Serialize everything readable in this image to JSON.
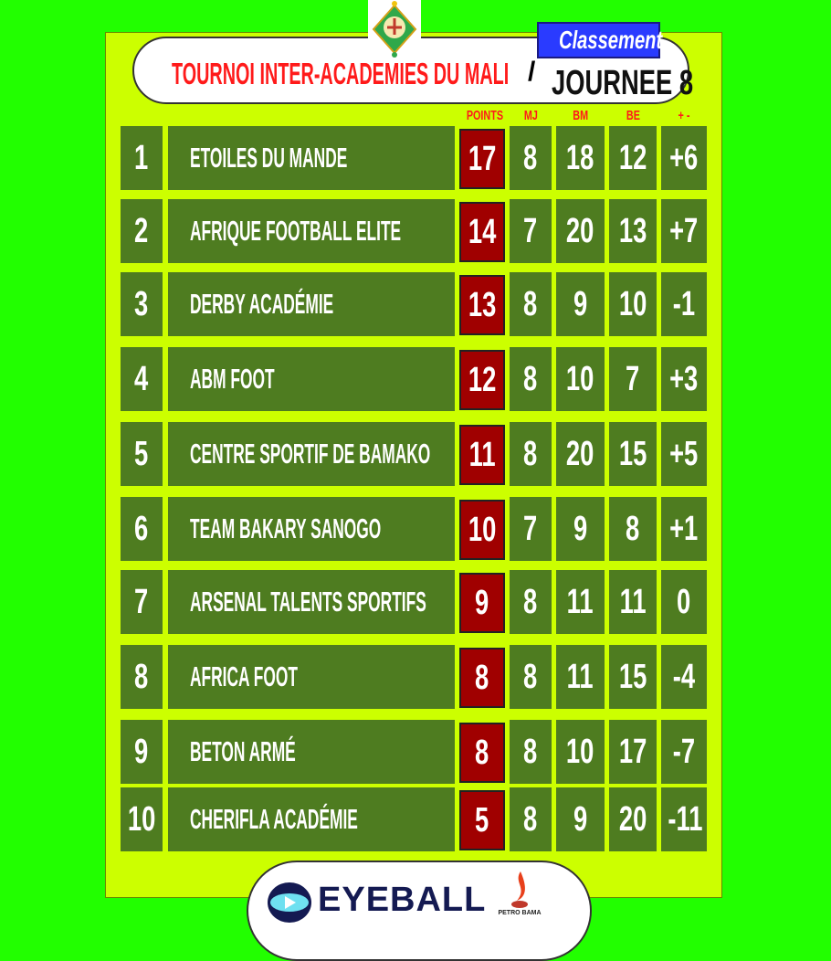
{
  "header": {
    "badge": "Classement",
    "title": "TOURNOI INTER-ACADEMIES DU MALI",
    "separator": "/",
    "round": "JOURNEE 8"
  },
  "columns": [
    "POINTS",
    "MJ",
    "BM",
    "BE",
    "+ -"
  ],
  "rows": [
    {
      "rank": "1",
      "team": "ETOILES DU MANDE",
      "points": "17",
      "mj": "8",
      "bm": "18",
      "be": "12",
      "diff": "+6"
    },
    {
      "rank": "2",
      "team": "AFRIQUE FOOTBALL ELITE",
      "points": "14",
      "mj": "7",
      "bm": "20",
      "be": "13",
      "diff": "+7"
    },
    {
      "rank": "3",
      "team": "DERBY ACADÉMIE",
      "points": "13",
      "mj": "8",
      "bm": "9",
      "be": "10",
      "diff": "-1"
    },
    {
      "rank": "4",
      "team": "ABM FOOT",
      "points": "12",
      "mj": "8",
      "bm": "10",
      "be": "7",
      "diff": "+3"
    },
    {
      "rank": "5",
      "team": "CENTRE  SPORTIF DE BAMAKO",
      "points": "11",
      "mj": "8",
      "bm": "20",
      "be": "15",
      "diff": "+5"
    },
    {
      "rank": "6",
      "team": "TEAM BAKARY SANOGO",
      "points": "10",
      "mj": "7",
      "bm": "9",
      "be": "8",
      "diff": "+1"
    },
    {
      "rank": "7",
      "team": "ARSENAL TALENTS SPORTIFS",
      "points": "9",
      "mj": "8",
      "bm": "11",
      "be": "11",
      "diff": "0"
    },
    {
      "rank": "8",
      "team": "AFRICA FOOT",
      "points": "8",
      "mj": "8",
      "bm": "11",
      "be": "15",
      "diff": "-4"
    },
    {
      "rank": "9",
      "team": "BETON ARMÉ",
      "points": "8",
      "mj": "8",
      "bm": "10",
      "be": "17",
      "diff": "-7"
    },
    {
      "rank": "10",
      "team": "CHERIFLA ACADÉMIE",
      "points": "5",
      "mj": "8",
      "bm": "9",
      "be": "20",
      "diff": "-11"
    }
  ],
  "sponsors": {
    "main": "EYEBALL",
    "secondary": "PETRO BAMA"
  },
  "colors": {
    "background": "#22ff00",
    "panel": "#ccff00",
    "row": "#4e7c20",
    "points": "#a00000",
    "title": "#ff1a1a",
    "badge": "#2a3bff"
  }
}
